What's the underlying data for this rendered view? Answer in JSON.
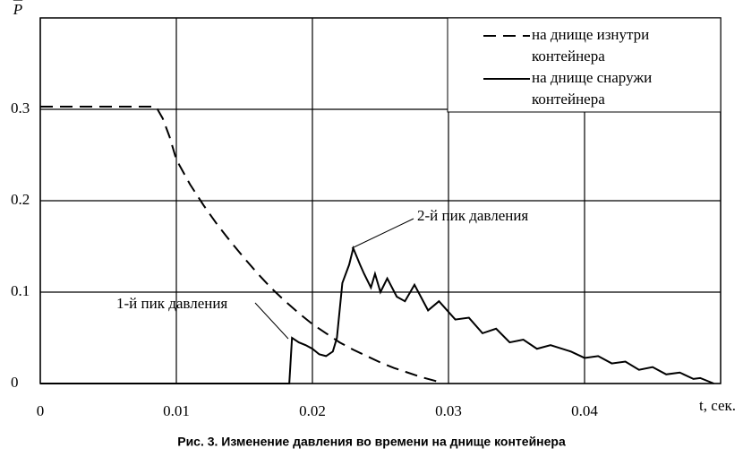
{
  "chart_data": {
    "type": "line",
    "title": "Рис. 3. Изменение давления во времени на днище контейнера",
    "y_label": "P",
    "x_label": "t, сек.",
    "xlim": [
      0,
      0.05
    ],
    "ylim": [
      0,
      0.4
    ],
    "xticks": [
      0,
      0.01,
      0.02,
      0.03,
      0.04
    ],
    "yticks": [
      0,
      0.1,
      0.2,
      0.3
    ],
    "grid": true,
    "legend": "upper right",
    "annotations": [
      {
        "text": "1-й пик давления"
      },
      {
        "text": "2-й пик давления"
      }
    ],
    "series": [
      {
        "name": "на днище изнутри контейнера",
        "color": "#000000",
        "dash": true,
        "x": [
          0,
          0.0085,
          0.009,
          0.0095,
          0.01,
          0.011,
          0.012,
          0.013,
          0.014,
          0.015,
          0.016,
          0.017,
          0.018,
          0.019,
          0.02,
          0.021,
          0.022,
          0.023,
          0.024,
          0.025,
          0.026,
          0.027,
          0.028,
          0.029,
          0.0295
        ],
        "values": [
          0.303,
          0.303,
          0.29,
          0.27,
          0.245,
          0.218,
          0.195,
          0.174,
          0.155,
          0.137,
          0.12,
          0.104,
          0.09,
          0.077,
          0.065,
          0.055,
          0.045,
          0.037,
          0.03,
          0.023,
          0.017,
          0.012,
          0.007,
          0.003,
          0
        ]
      },
      {
        "name": "на днище снаружи контейнера",
        "color": "#000000",
        "dash": false,
        "x": [
          0,
          0.0183,
          0.0185,
          0.019,
          0.0195,
          0.02,
          0.0205,
          0.021,
          0.0215,
          0.0218,
          0.0222,
          0.0227,
          0.023,
          0.0235,
          0.0238,
          0.0243,
          0.0246,
          0.025,
          0.0255,
          0.0262,
          0.0268,
          0.0275,
          0.0285,
          0.0293,
          0.0305,
          0.0315,
          0.0325,
          0.0335,
          0.0345,
          0.0355,
          0.0365,
          0.0375,
          0.039,
          0.04,
          0.041,
          0.042,
          0.043,
          0.044,
          0.045,
          0.046,
          0.047,
          0.048,
          0.0485,
          0.0495
        ],
        "values": [
          0,
          0,
          0.05,
          0.045,
          0.042,
          0.038,
          0.032,
          0.03,
          0.035,
          0.05,
          0.11,
          0.13,
          0.148,
          0.13,
          0.12,
          0.105,
          0.12,
          0.1,
          0.115,
          0.095,
          0.09,
          0.108,
          0.08,
          0.09,
          0.07,
          0.072,
          0.055,
          0.06,
          0.045,
          0.048,
          0.038,
          0.042,
          0.035,
          0.028,
          0.03,
          0.022,
          0.024,
          0.015,
          0.018,
          0.01,
          0.012,
          0.005,
          0.006,
          0
        ]
      }
    ]
  }
}
